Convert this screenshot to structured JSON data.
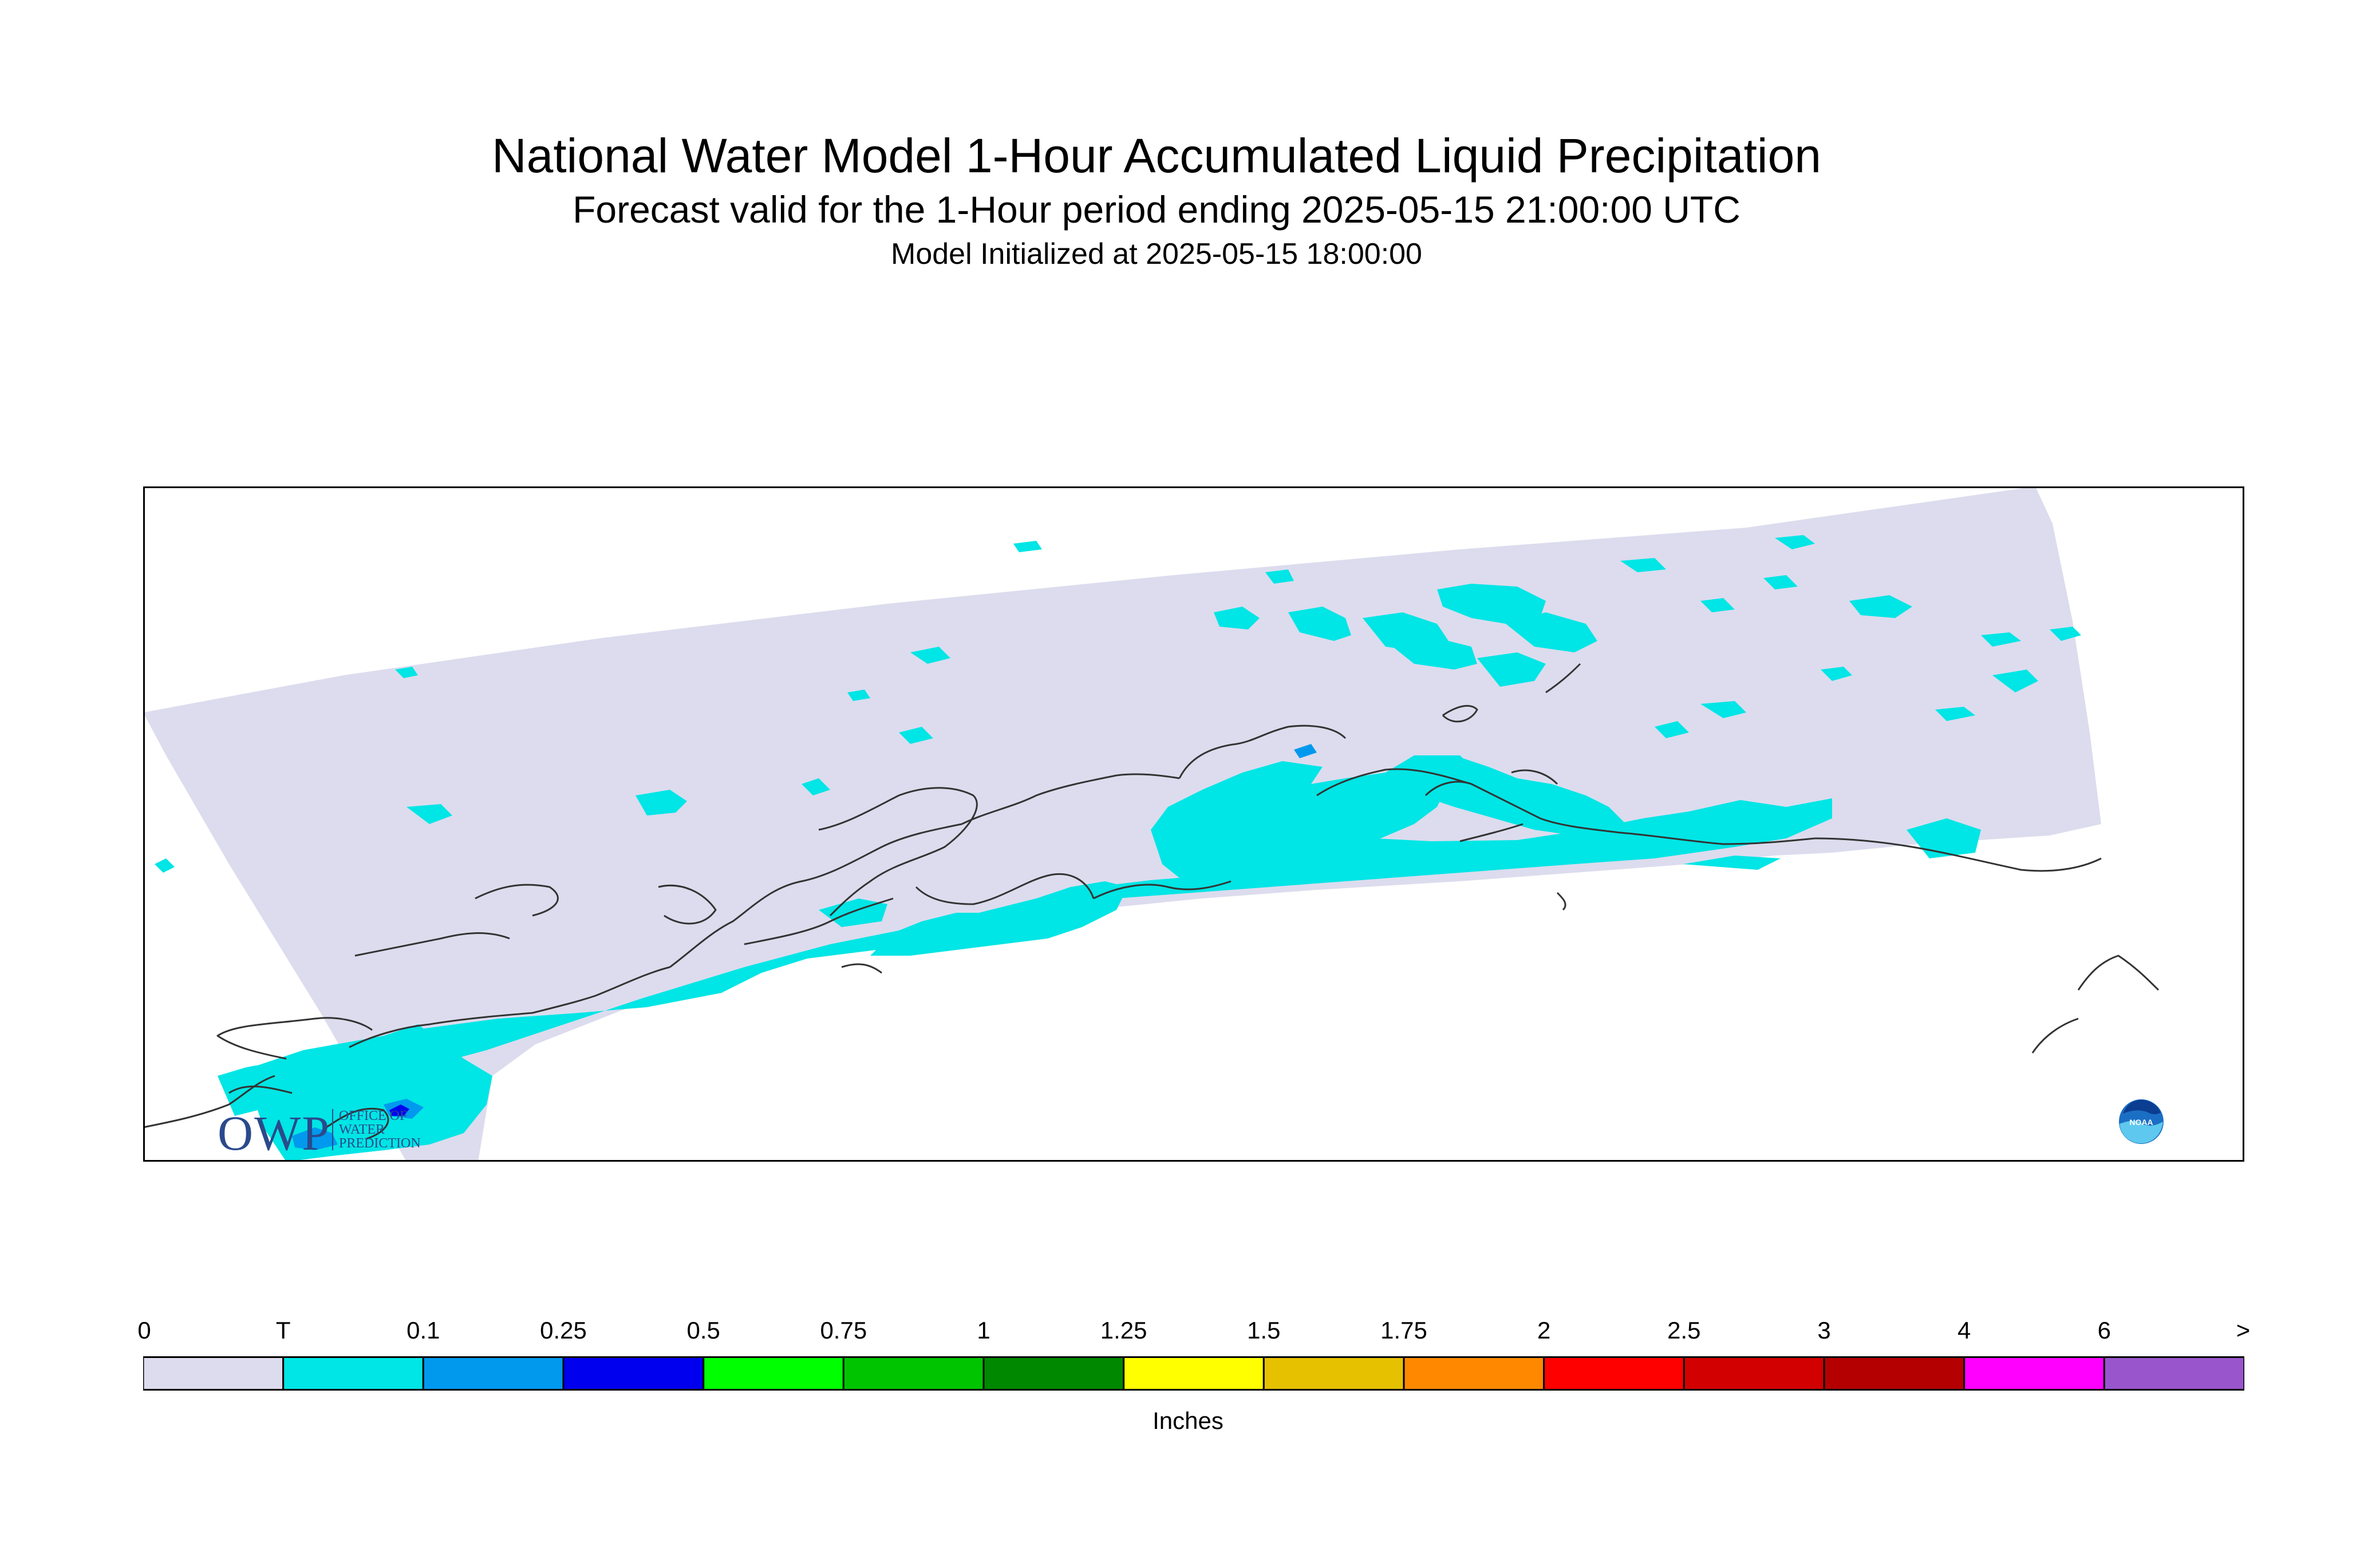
{
  "title": "National Water Model 1-Hour Accumulated Liquid Precipitation",
  "subtitle": "Forecast valid for the 1-Hour period ending 2025-05-15 21:00:00 UTC",
  "init": "Model Initialized at 2025-05-15 18:00:00",
  "legend": {
    "labels": [
      "0",
      "T",
      "0.1",
      "0.25",
      "0.5",
      "0.75",
      "1",
      "1.25",
      "1.5",
      "1.75",
      "2",
      "2.5",
      "3",
      "4",
      "6",
      ">"
    ],
    "colors": [
      "#dcdcee",
      "#00e5e5",
      "#0099ee",
      "#0000ee",
      "#00ff00",
      "#00c400",
      "#008800",
      "#ffff00",
      "#e5c100",
      "#ff8800",
      "#ff0000",
      "#d20000",
      "#b40000",
      "#ff00ff",
      "#9955cc"
    ],
    "units": "Inches"
  },
  "logos": {
    "owp_text": "OWP",
    "owp_small": [
      "OFFICE OF",
      "WATER",
      "PREDICTION"
    ],
    "noaa_text": "NOAA"
  },
  "colors": {
    "no_precip": "#dcdcee",
    "trace": "#00e5e5",
    "light": "#0099ee",
    "moderate": "#0000ee",
    "coastline": "#333333"
  }
}
